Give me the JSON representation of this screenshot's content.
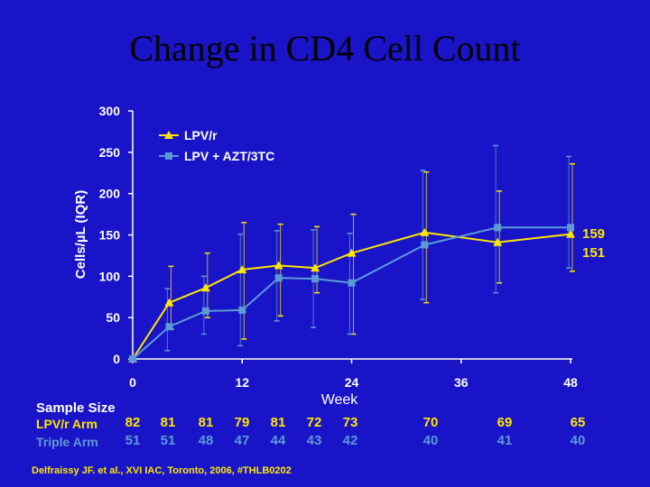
{
  "title": "Change in CD4 Cell Count",
  "citation": "Delfraissy JF. et al., XVI IAC, Toronto, 2006, #THLB0202",
  "colors": {
    "background": "#1a14c8",
    "lpv": "#ffe600",
    "triple": "#5b9bd5",
    "axis": "#ffffff"
  },
  "chart_data": {
    "type": "line",
    "title": "Change in CD4 Cell Count",
    "xlabel": "Week",
    "ylabel": "Cells/µL (IQR)",
    "xlim": [
      0,
      48
    ],
    "ylim": [
      0,
      300
    ],
    "xticks": [
      0,
      12,
      24,
      36,
      48
    ],
    "yticks": [
      0,
      50,
      100,
      150,
      200,
      250,
      300
    ],
    "grid": false,
    "legend": "top-left",
    "series": [
      {
        "name": "LPV/r",
        "color": "#ffe600",
        "marker": "triangle",
        "x": [
          0,
          4,
          8,
          12,
          16,
          20,
          24,
          32,
          40,
          48
        ],
        "y": [
          0,
          68,
          86,
          108,
          113,
          110,
          128,
          153,
          141,
          151
        ],
        "iqr": [
          null,
          [
            36,
            112
          ],
          [
            50,
            128
          ],
          [
            24,
            165
          ],
          [
            52,
            163
          ],
          [
            80,
            160
          ],
          [
            30,
            175
          ],
          [
            68,
            226
          ],
          [
            92,
            203
          ],
          [
            106,
            236
          ]
        ],
        "end_label": "151"
      },
      {
        "name": "LPV + AZT/3TC",
        "color": "#5b9bd5",
        "marker": "square",
        "x": [
          0,
          4,
          8,
          12,
          16,
          20,
          24,
          32,
          40,
          48
        ],
        "y": [
          0,
          39,
          58,
          59,
          98,
          97,
          92,
          138,
          159,
          159
        ],
        "iqr": [
          null,
          [
            10,
            85
          ],
          [
            30,
            100
          ],
          [
            16,
            151
          ],
          [
            46,
            155
          ],
          [
            38,
            156
          ],
          [
            30,
            152
          ],
          [
            72,
            228
          ],
          [
            80,
            258
          ],
          [
            110,
            245
          ]
        ],
        "end_label": "159"
      }
    ]
  },
  "sample_size": {
    "title": "Sample Size",
    "rows": [
      {
        "label": "LPV/r Arm",
        "values": [
          "82",
          "81",
          "81",
          "79",
          "81",
          "72",
          "73",
          "70",
          "69",
          "65"
        ]
      },
      {
        "label": "Triple Arm",
        "values": [
          "51",
          "51",
          "48",
          "47",
          "44",
          "43",
          "42",
          "40",
          "41",
          "40"
        ]
      }
    ]
  }
}
